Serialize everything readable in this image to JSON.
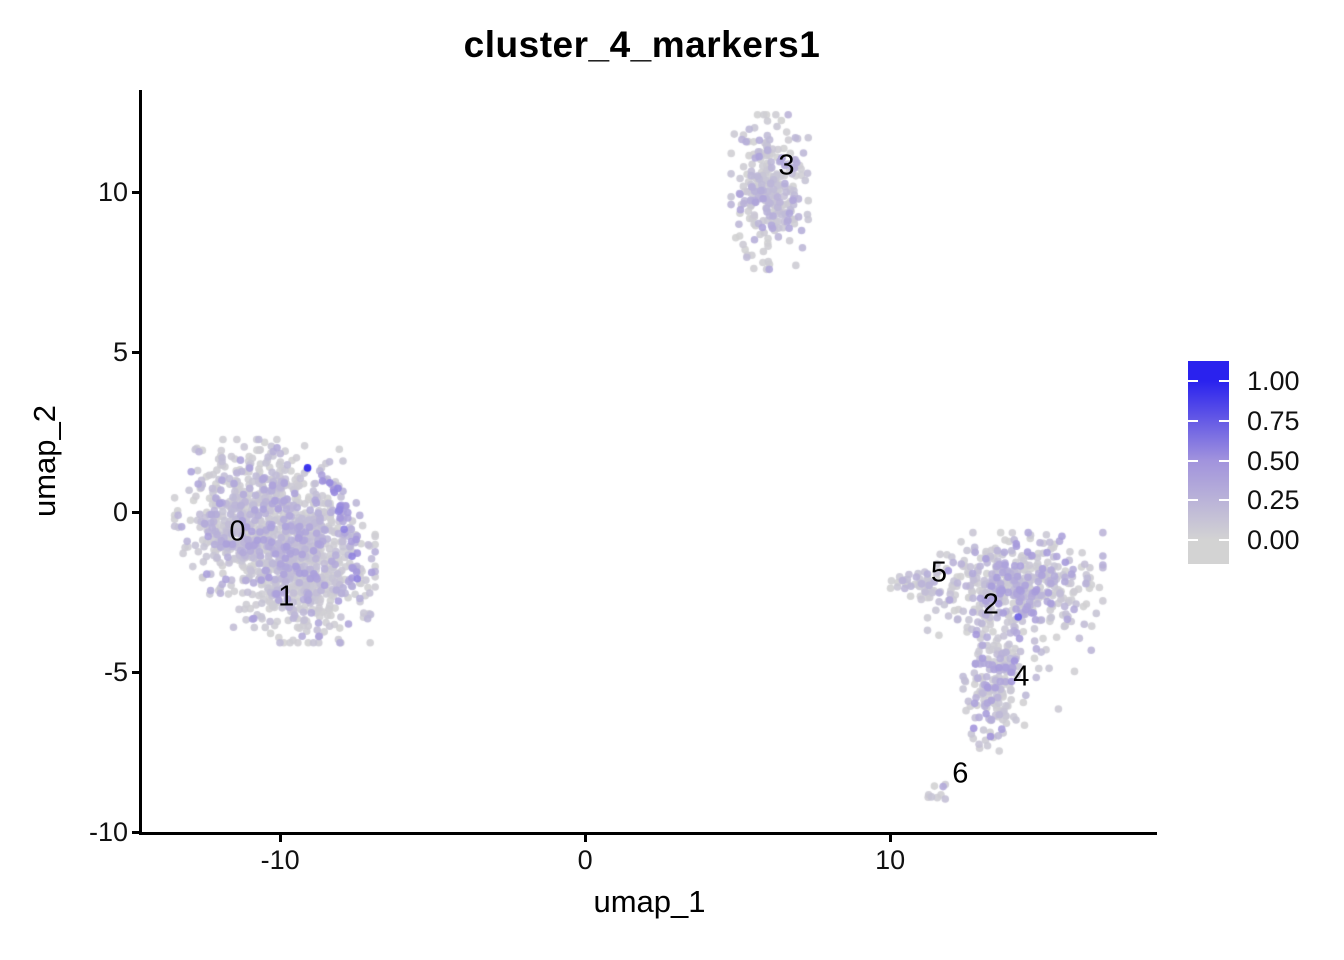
{
  "page": {
    "background": "#ffffff"
  },
  "chart_data": {
    "type": "scatter",
    "title": "cluster_4_markers1",
    "xlabel": "umap_1",
    "ylabel": "umap_2",
    "xlim": [
      -14.53,
      18.75
    ],
    "ylim": [
      -10.0,
      13.19
    ],
    "x_ticks": [
      {
        "value": -10,
        "label": "-10"
      },
      {
        "value": 0,
        "label": "0"
      },
      {
        "value": 10,
        "label": "10"
      }
    ],
    "y_ticks": [
      {
        "value": 10,
        "label": "10"
      },
      {
        "value": 5,
        "label": "5"
      },
      {
        "value": 0,
        "label": "0"
      },
      {
        "value": -5,
        "label": "-5"
      },
      {
        "value": -10,
        "label": "-10"
      }
    ],
    "grid": false,
    "point_radius": 3.8,
    "point_alpha": 0.9,
    "color_scale": {
      "low_color": "#d3d3d3",
      "mid_color": "#a193dd",
      "high_color": "#2a22ee"
    },
    "legend": {
      "position": "right",
      "value_min": -0.151,
      "value_max": 1.126,
      "ticks": [
        {
          "value": 1.0,
          "label": "1.00"
        },
        {
          "value": 0.75,
          "label": "0.75"
        },
        {
          "value": 0.5,
          "label": "0.50"
        },
        {
          "value": 0.25,
          "label": "0.25"
        },
        {
          "value": 0.0,
          "label": "0.00"
        }
      ]
    },
    "seed": 42,
    "clusters": [
      {
        "label": "0",
        "n": 700,
        "cx": -10.7,
        "cy": -0.15,
        "sx": 1.2,
        "sy": 1.05,
        "expr_base": 0.05,
        "expr_scale": 0.38,
        "label_x": -11.4,
        "label_y": -0.62
      },
      {
        "label": "1",
        "n": 560,
        "cx": -9.3,
        "cy": -1.9,
        "sx": 1.05,
        "sy": 0.95,
        "expr_base": 0.05,
        "expr_scale": 0.4,
        "label_x": -9.8,
        "label_y": -2.66
      },
      {
        "label": "2",
        "n": 430,
        "cx": 14.1,
        "cy": -2.3,
        "sx": 1.25,
        "sy": 0.72,
        "expr_base": 0.05,
        "expr_scale": 0.42,
        "label_x": 13.3,
        "label_y": -2.9
      },
      {
        "label": "3",
        "n": 280,
        "cx": 6.05,
        "cy": 10.0,
        "sx": 0.55,
        "sy": 1.05,
        "expr_base": 0.05,
        "expr_scale": 0.34,
        "label_x": 6.6,
        "label_y": 10.8
      },
      {
        "label": "4",
        "n": 190,
        "cx": 13.45,
        "cy": -5.35,
        "sx": 0.46,
        "sy": 0.95,
        "expr_base": 0.06,
        "expr_scale": 0.45,
        "label_x": 14.3,
        "label_y": -5.15
      },
      {
        "label": "5",
        "n": 42,
        "cx": 10.95,
        "cy": -2.3,
        "sx": 0.5,
        "sy": 0.22,
        "expr_base": 0.05,
        "expr_scale": 0.3,
        "label_x": 11.6,
        "label_y": -1.9
      },
      {
        "label": "6",
        "n": 9,
        "cx": 11.55,
        "cy": -8.75,
        "sx": 0.19,
        "sy": 0.18,
        "expr_base": 0.08,
        "expr_scale": 0.3,
        "label_x": 12.3,
        "label_y": -8.2
      },
      {
        "label": "",
        "n": 26,
        "cx": 15.1,
        "cy": -4.2,
        "sx": 0.85,
        "sy": 0.85,
        "expr_base": 0.05,
        "expr_scale": 0.3,
        "label_x": null,
        "label_y": null
      }
    ],
    "rim_points": {
      "n": 42,
      "from": [
        -8.62,
        1.25
      ],
      "to": [
        -7.6,
        -2.45
      ],
      "bulge": 0.42,
      "jitter_x": 0.18,
      "jitter_y": 0.25,
      "value_min": 0.18,
      "value_max": 0.58
    },
    "highlight_points": [
      {
        "x": -9.1,
        "y": 1.38,
        "value": 1.0
      },
      {
        "x": 14.2,
        "y": -3.28,
        "value": 0.72
      }
    ]
  }
}
